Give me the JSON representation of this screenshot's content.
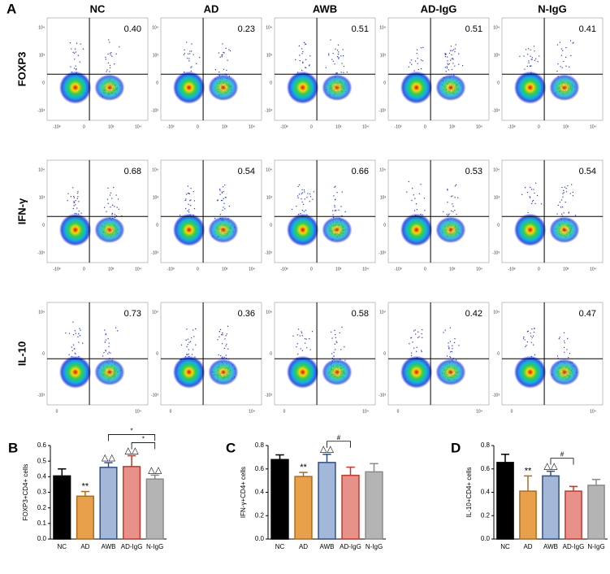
{
  "panel_labels": [
    "A",
    "B",
    "C",
    "D"
  ],
  "flow": {
    "columns": [
      "NC",
      "AD",
      "AWB",
      "AD-IgG",
      "N-IgG"
    ],
    "rows": [
      {
        "label": "FOXP3",
        "values": [
          "0.40",
          "0.23",
          "0.51",
          "0.51",
          "0.41"
        ],
        "xticks": [
          "-10³",
          "0",
          "10³",
          "10⁴"
        ],
        "yticks": [
          "10⁴",
          "10³",
          "0",
          "-10³"
        ]
      },
      {
        "label": "IFN-γ",
        "values": [
          "0.68",
          "0.54",
          "0.66",
          "0.53",
          "0.54"
        ],
        "xticks": [
          "-10³",
          "0",
          "10³",
          "10⁴"
        ],
        "yticks": [
          "10⁴",
          "10³",
          "0",
          "-10³"
        ]
      },
      {
        "label": "IL-10",
        "values": [
          "0.73",
          "0.36",
          "0.58",
          "0.42",
          "0.47"
        ],
        "xticks": [
          "0",
          "10⁴"
        ],
        "yticks": [
          "10⁴",
          "0",
          "-10³"
        ]
      }
    ]
  },
  "chart_data": [
    {
      "type": "bar",
      "y_label": "FOXP3+CD4+ cells",
      "categories": [
        "NC",
        "AD",
        "AWB",
        "AD-IgG",
        "N-IgG"
      ],
      "values": [
        0.405,
        0.275,
        0.46,
        0.465,
        0.385
      ],
      "errors": [
        0.045,
        0.03,
        0.03,
        0.07,
        0.025
      ],
      "colors": [
        "#000000",
        "#e8a04a",
        "#a3b7d9",
        "#e8908a",
        "#b4b4b4"
      ],
      "edge_colors": [
        "#000000",
        "#b06a1c",
        "#2f4f8a",
        "#c0392b",
        "#8a8a8a"
      ],
      "annotations": [
        null,
        "**",
        "△△",
        "△△",
        "△△"
      ],
      "brackets": [
        {
          "from": "AD-IgG",
          "to": "N-IgG",
          "text": "*"
        },
        {
          "from": "AWB",
          "to": "N-IgG",
          "text": "*"
        }
      ],
      "ylim": [
        0,
        0.6
      ],
      "yticks": [
        {
          "value": 0,
          "label": "0.0"
        },
        0.1,
        0.2,
        0.3,
        0.4,
        0.5,
        0.6
      ]
    },
    {
      "type": "bar",
      "y_label": "IFN-γ+CD4+ cells",
      "categories": [
        "NC",
        "AD",
        "AWB",
        "AD-IgG",
        "N-IgG"
      ],
      "values": [
        0.68,
        0.535,
        0.655,
        0.545,
        0.575
      ],
      "errors": [
        0.04,
        0.035,
        0.07,
        0.07,
        0.07
      ],
      "colors": [
        "#000000",
        "#e8a04a",
        "#a3b7d9",
        "#e8908a",
        "#b4b4b4"
      ],
      "edge_colors": [
        "#000000",
        "#b06a1c",
        "#2f4f8a",
        "#c0392b",
        "#8a8a8a"
      ],
      "annotations": [
        null,
        "**",
        "△△",
        null,
        null
      ],
      "brackets": [
        {
          "from": "AWB",
          "to": "AD-IgG",
          "text": "#"
        }
      ],
      "ylim": [
        0,
        0.8
      ],
      "yticks": [
        {
          "value": 0,
          "label": "0.0"
        },
        0.2,
        0.4,
        0.6,
        0.8
      ]
    },
    {
      "type": "bar",
      "y_label": "IL-10+CD4+ cells",
      "categories": [
        "NC",
        "AD",
        "AWB",
        "AD-IgG",
        "N-IgG"
      ],
      "values": [
        0.655,
        0.41,
        0.54,
        0.41,
        0.46
      ],
      "errors": [
        0.07,
        0.13,
        0.04,
        0.04,
        0.05
      ],
      "colors": [
        "#000000",
        "#e8a04a",
        "#a3b7d9",
        "#e8908a",
        "#b4b4b4"
      ],
      "edge_colors": [
        "#000000",
        "#b06a1c",
        "#2f4f8a",
        "#c0392b",
        "#8a8a8a"
      ],
      "annotations": [
        null,
        "**",
        "△△",
        null,
        null
      ],
      "brackets": [
        {
          "from": "AWB",
          "to": "AD-IgG",
          "text": "#"
        }
      ],
      "ylim": [
        0,
        0.8
      ],
      "yticks": [
        {
          "value": 0,
          "label": "0.0"
        },
        0.2,
        0.4,
        0.6,
        0.8
      ]
    }
  ]
}
